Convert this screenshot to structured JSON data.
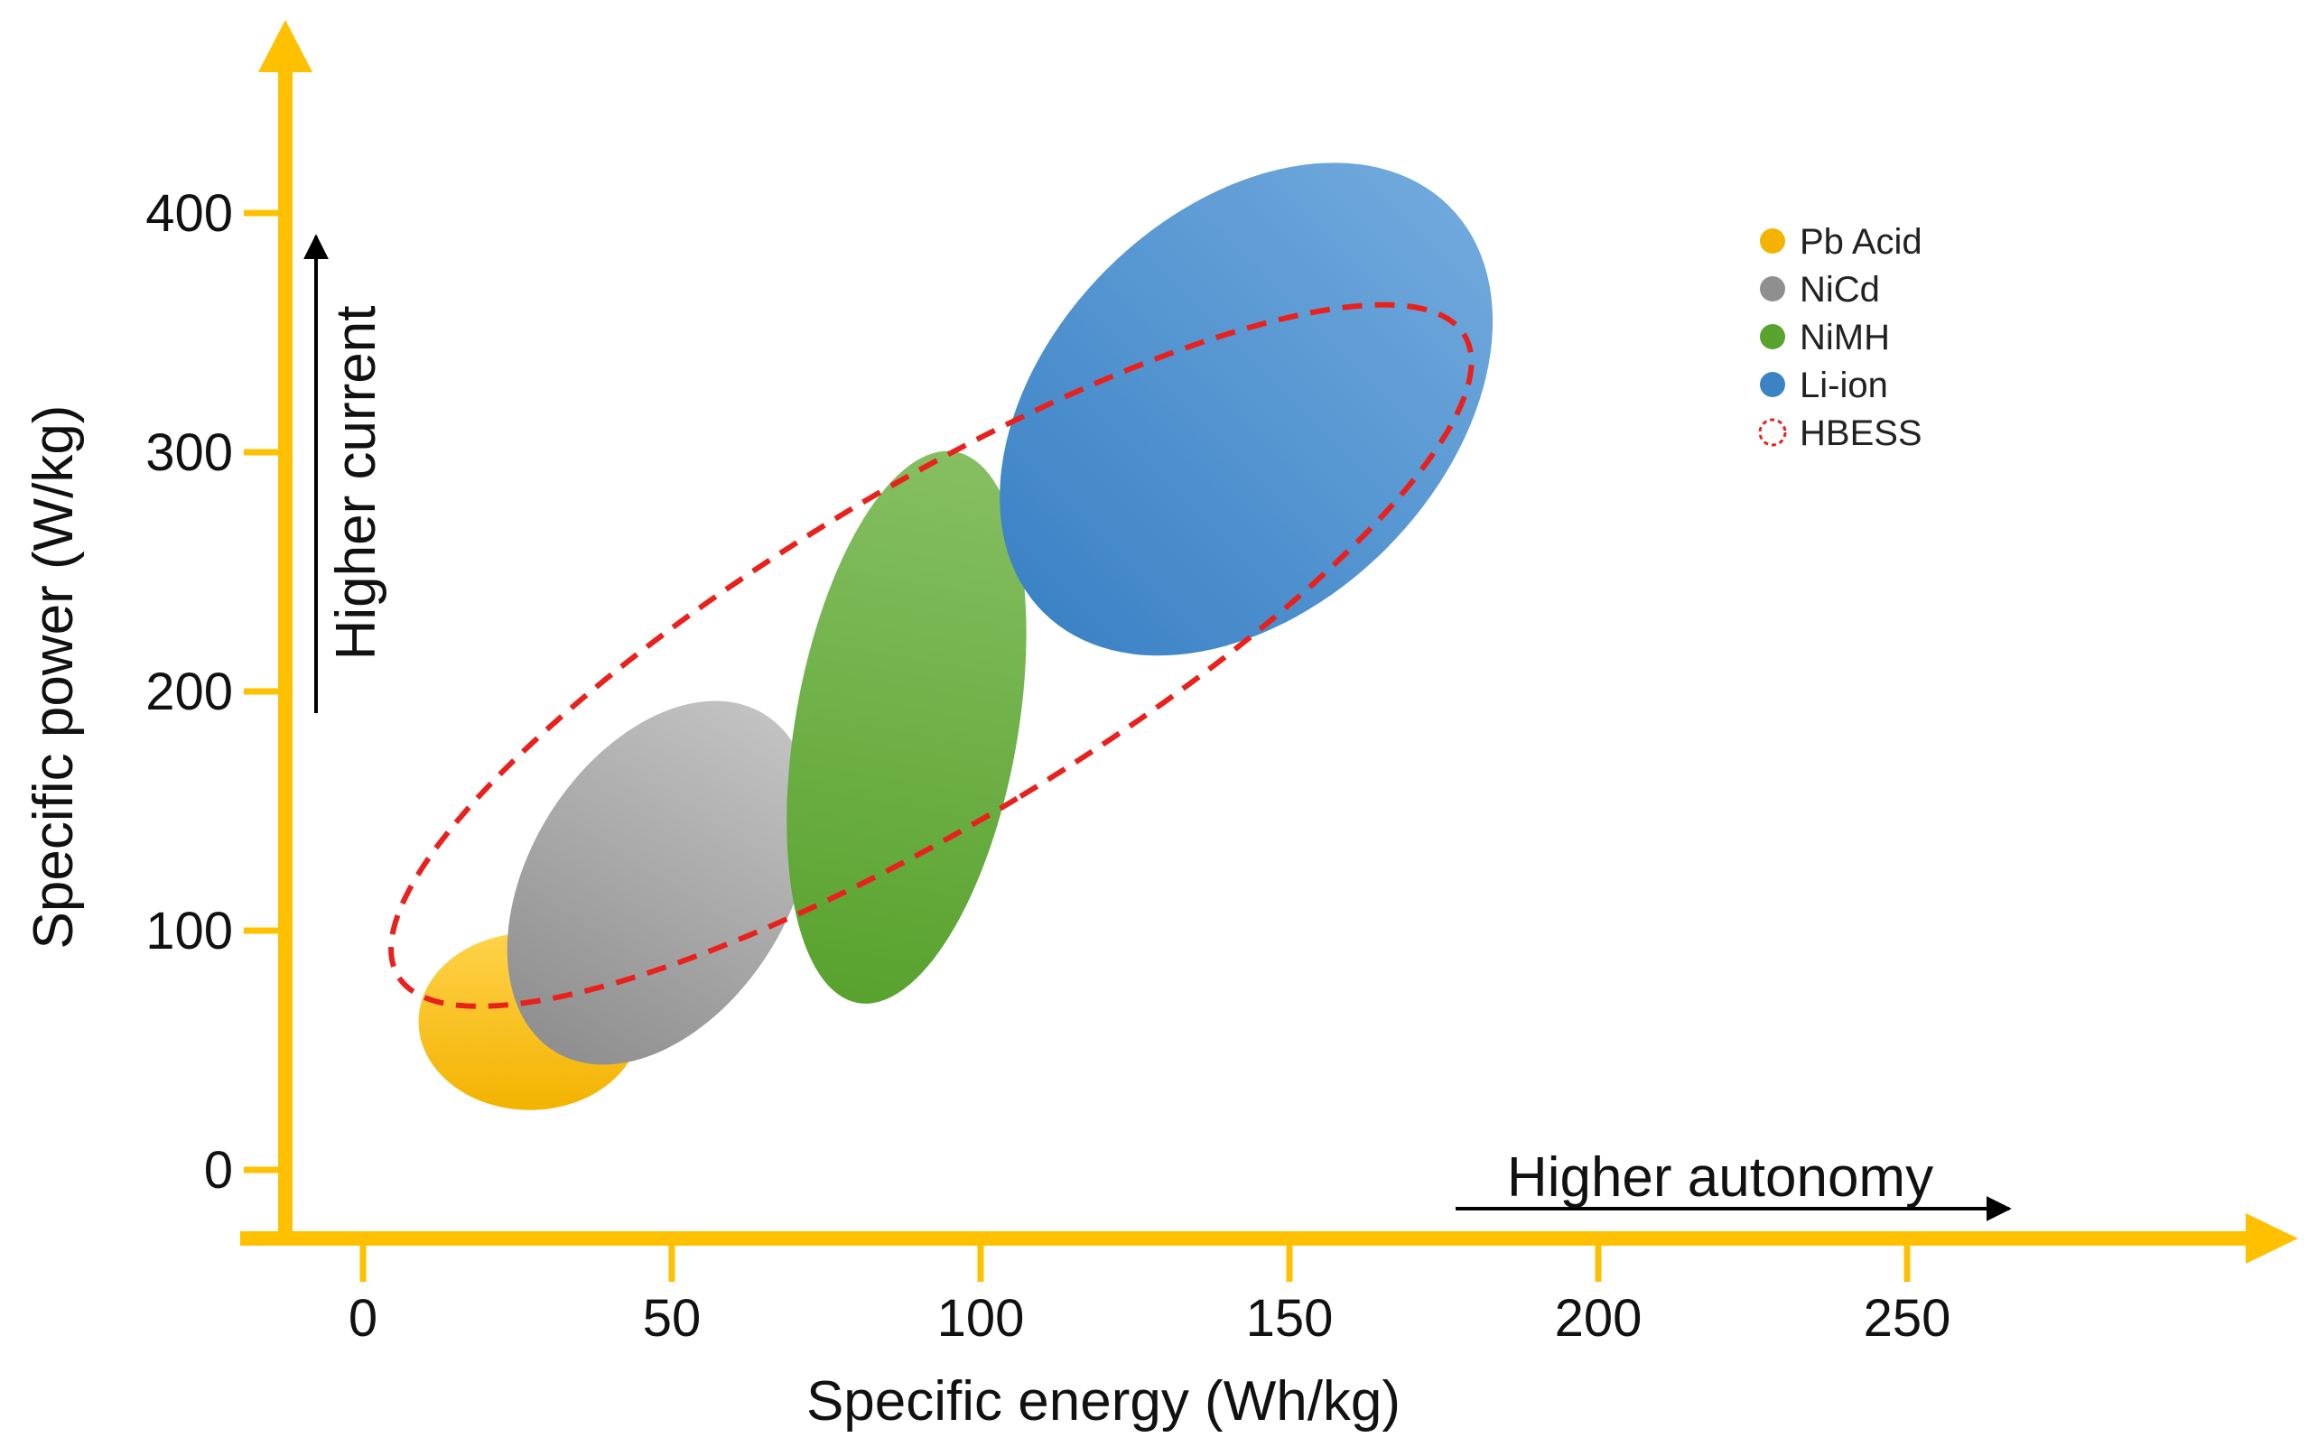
{
  "chart_data": {
    "type": "scatter",
    "title": "",
    "xlabel": "Specific energy (Wh/kg)",
    "ylabel": "Specific power (W/kg)",
    "xlim": [
      -18,
      310
    ],
    "ylim": [
      -28,
      460
    ],
    "xticks": [
      0,
      50,
      100,
      150,
      200,
      250
    ],
    "yticks": [
      0,
      100,
      200,
      300,
      400
    ],
    "axis_color": "#FFC000",
    "annotations": {
      "x_arrow": "Higher autonomy",
      "y_arrow": "Higher current"
    },
    "legend_position": "top-right",
    "series": [
      {
        "name": "Pb Acid",
        "cx": 27,
        "cy": 62,
        "rx": 18,
        "ry": 37,
        "angle": 0,
        "color_top": "#FFD24A",
        "color_bottom": "#F3B300",
        "style": "filled"
      },
      {
        "name": "NiCd",
        "cx": 48,
        "cy": 120,
        "rx": 21,
        "ry": 83,
        "angle": 32,
        "color_top": "#C2C2C2",
        "color_bottom": "#8F8F8F",
        "style": "filled"
      },
      {
        "name": "NiMH",
        "cx": 88,
        "cy": 185,
        "rx": 18,
        "ry": 117,
        "angle": 10,
        "color_top": "#86BF62",
        "color_bottom": "#58A22E",
        "style": "filled"
      },
      {
        "name": "Li-ion",
        "cx": 143,
        "cy": 318,
        "rx": 32,
        "ry": 120,
        "angle": 45,
        "color_top": "#6FA8DC",
        "color_bottom": "#3C83C6",
        "style": "filled"
      },
      {
        "name": "HBESS",
        "cx": 92,
        "cy": 215,
        "rx": 27,
        "ry": 260,
        "angle": 59,
        "color_top": "#E8211D",
        "color_bottom": "#E8211D",
        "style": "dashed"
      }
    ]
  }
}
